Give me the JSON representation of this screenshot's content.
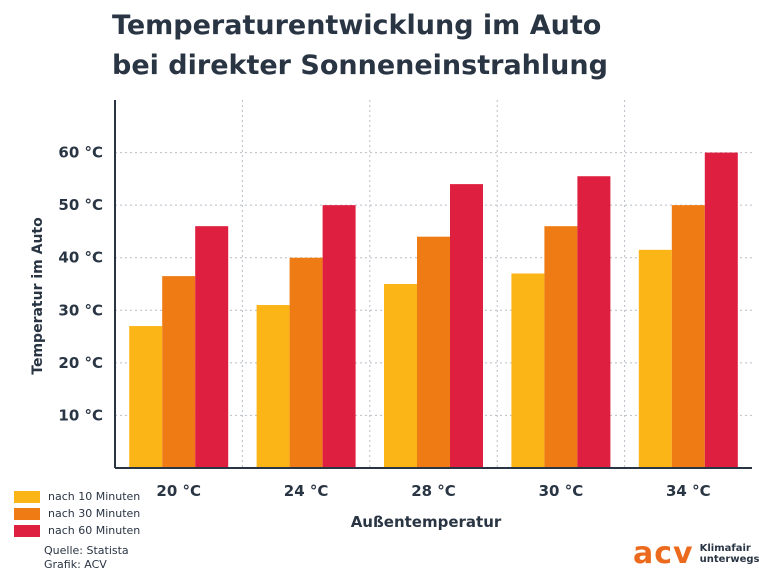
{
  "chart_data": {
    "type": "bar",
    "title": "Temperaturentwicklung im Auto",
    "subtitle": "bei direkter Sonneneinstrahlung",
    "xlabel": "Außentemperatur",
    "ylabel": "Temperatur im Auto",
    "categories": [
      "20 °C",
      "24 °C",
      "28 °C",
      "30 °C",
      "34 °C"
    ],
    "series": [
      {
        "name": "nach 10 Minuten",
        "color": "#fbb517",
        "values": [
          27,
          31,
          35,
          37,
          41.5
        ]
      },
      {
        "name": "nach 30 Minuten",
        "color": "#ef7b14",
        "values": [
          36.5,
          40,
          44,
          46,
          50
        ]
      },
      {
        "name": "nach 60 Minuten",
        "color": "#df1f3f",
        "values": [
          46,
          50,
          54,
          55.5,
          60
        ]
      }
    ],
    "ylim": [
      0,
      70
    ],
    "yticks": [
      10,
      20,
      30,
      40,
      50,
      60
    ],
    "ytick_labels": [
      "10 °C",
      "20 °C",
      "30 °C",
      "40 °C",
      "50 °C",
      "60 °C"
    ],
    "grid": true,
    "legend_position": "bottom-left"
  },
  "footer": {
    "source": "Quelle: Statista",
    "credit": "Grafik: ACV"
  },
  "logo": {
    "mark": "acv",
    "line1": "Klimafair",
    "line2": "unterwegs",
    "color": "#ec6a1d"
  }
}
